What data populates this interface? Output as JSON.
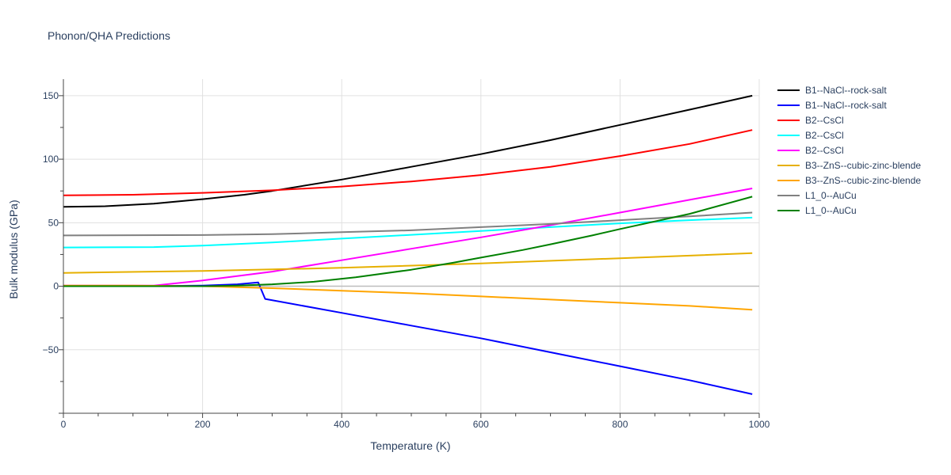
{
  "chart_data": {
    "type": "line",
    "title": "Phonon/QHA Predictions",
    "xlabel": "Temperature (K)",
    "ylabel": "Bulk modulus (GPa)",
    "xlim": [
      0,
      1000
    ],
    "ylim": [
      -100,
      163
    ],
    "xticks": [
      0,
      200,
      400,
      600,
      800,
      1000
    ],
    "xtick_labels": [
      "0",
      "200",
      "400",
      "600",
      "800",
      "1000"
    ],
    "yticks": [
      -50,
      0,
      50,
      100,
      150
    ],
    "ytick_labels": [
      "−50",
      "0",
      "50",
      "100",
      "150"
    ],
    "grid": true,
    "legend_position": "right",
    "series": [
      {
        "name": "B1--NaCl--rock-salt",
        "color": "#000000",
        "x": [
          0,
          60,
          130,
          200,
          260,
          300,
          400,
          500,
          600,
          700,
          800,
          900,
          990
        ],
        "y": [
          62.5,
          63,
          65,
          68.5,
          72,
          75,
          84,
          94,
          104,
          115,
          127,
          139,
          150
        ]
      },
      {
        "name": "B1--NaCl--rock-salt",
        "color": "#0000ff",
        "x": [
          0,
          100,
          200,
          250,
          280,
          290,
          400,
          500,
          600,
          700,
          800,
          900,
          990
        ],
        "y": [
          0,
          0,
          0.5,
          1.5,
          3,
          -10,
          -21,
          -31,
          -41,
          -52,
          -63,
          -74,
          -85
        ]
      },
      {
        "name": "B2--CsCl",
        "color": "#ff0000",
        "x": [
          0,
          100,
          200,
          300,
          400,
          500,
          600,
          700,
          800,
          900,
          990
        ],
        "y": [
          71.5,
          72,
          73.5,
          75.5,
          78.5,
          82.5,
          87.5,
          94,
          102.5,
          112,
          123
        ]
      },
      {
        "name": "B2--CsCl",
        "color": "#00ffff",
        "x": [
          0,
          130,
          200,
          300,
          400,
          500,
          600,
          700,
          800,
          900,
          990
        ],
        "y": [
          30.5,
          30.8,
          32,
          34.5,
          37.5,
          40.5,
          43.5,
          46.5,
          49.5,
          52,
          54
        ]
      },
      {
        "name": "B2--CsCl",
        "color": "#ff00ff",
        "x": [
          0,
          100,
          130,
          200,
          300,
          400,
          500,
          600,
          700,
          800,
          900,
          990
        ],
        "y": [
          0.5,
          0.5,
          0.5,
          4.5,
          11.5,
          20.5,
          29.5,
          38.5,
          48,
          58,
          68,
          77
        ]
      },
      {
        "name": "B3--ZnS--cubic-zinc-blende",
        "color": "#e6b000",
        "x": [
          0,
          200,
          400,
          600,
          800,
          990
        ],
        "y": [
          10.5,
          12,
          14.5,
          18,
          22,
          26
        ]
      },
      {
        "name": "B3--ZnS--cubic-zinc-blende",
        "color": "#ffa500",
        "x": [
          0,
          100,
          200,
          300,
          400,
          500,
          600,
          700,
          800,
          900,
          990
        ],
        "y": [
          0.5,
          0.5,
          0,
          -1.5,
          -3.5,
          -5.5,
          -8,
          -10.5,
          -13,
          -15.5,
          -18.5
        ]
      },
      {
        "name": "L1_0--AuCu",
        "color": "#808080",
        "x": [
          0,
          200,
          300,
          400,
          500,
          600,
          700,
          800,
          900,
          990
        ],
        "y": [
          40,
          40.3,
          41,
          42.5,
          44,
          46.5,
          49,
          52,
          55,
          58
        ]
      },
      {
        "name": "L1_0--AuCu",
        "color": "#008000",
        "x": [
          0,
          200,
          250,
          300,
          360,
          420,
          500,
          560,
          600,
          660,
          700,
          760,
          800,
          900,
          990
        ],
        "y": [
          0,
          0,
          0.5,
          1.5,
          3.5,
          7,
          13,
          18.5,
          22.5,
          28.5,
          33,
          40,
          45,
          57,
          70.5
        ]
      }
    ]
  }
}
